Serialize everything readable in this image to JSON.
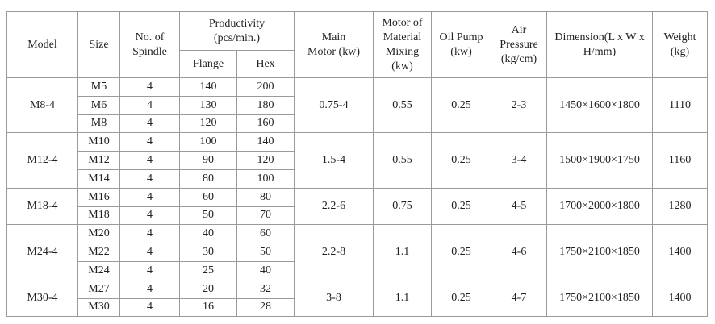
{
  "headers": [
    {
      "lines": [
        "Model"
      ]
    },
    {
      "lines": [
        "Size"
      ]
    },
    {
      "lines": [
        "No. of",
        "Spindle"
      ]
    },
    {
      "lines": [
        "Productivity",
        "(pcs/min.)"
      ],
      "sub": [
        "Flange",
        "Hex"
      ]
    },
    {
      "lines": [
        "Main",
        "Motor    (kw)"
      ]
    },
    {
      "lines": [
        "Motor of",
        "Material",
        "Mixing",
        "(kw)"
      ]
    },
    {
      "lines": [
        "Oil Pump",
        "(kw)"
      ]
    },
    {
      "lines": [
        "Air",
        "Pressure",
        "(kg/cm)"
      ]
    },
    {
      "lines": [
        "Dimension(L x W x",
        "H/mm)"
      ]
    },
    {
      "lines": [
        "Weight",
        "(kg)"
      ]
    }
  ],
  "groups": [
    {
      "model": "M8-4",
      "main_motor": "0.75-4",
      "mixing": 0.55,
      "oil_pump": 0.25,
      "air": "2-3",
      "dimension": "1450×1600×1800",
      "weight": 1110,
      "rows": [
        [
          "M5",
          4,
          140,
          200
        ],
        [
          "M6",
          4,
          130,
          180
        ],
        [
          "M8",
          4,
          120,
          160
        ]
      ]
    },
    {
      "model": "M12-4",
      "main_motor": "1.5-4",
      "mixing": 0.55,
      "oil_pump": 0.25,
      "air": "3-4",
      "dimension": "1500×1900×1750",
      "weight": 1160,
      "rows": [
        [
          "M10",
          4,
          100,
          140
        ],
        [
          "M12",
          4,
          90,
          120
        ],
        [
          "M14",
          4,
          80,
          100
        ]
      ]
    },
    {
      "model": "M18-4",
      "main_motor": "2.2-6",
      "mixing": 0.75,
      "oil_pump": 0.25,
      "air": "4-5",
      "dimension": "1700×2000×1800",
      "weight": 1280,
      "rows": [
        [
          "M16",
          4,
          60,
          80
        ],
        [
          "M18",
          4,
          50,
          70
        ]
      ]
    },
    {
      "model": "M24-4",
      "main_motor": "2.2-8",
      "mixing": 1.1,
      "oil_pump": 0.25,
      "air": "4-6",
      "dimension": "1750×2100×1850",
      "weight": 1400,
      "rows": [
        [
          "M20",
          4,
          40,
          60
        ],
        [
          "M22",
          4,
          30,
          50
        ],
        [
          "M24",
          4,
          25,
          40
        ]
      ]
    },
    {
      "model": "M30-4",
      "main_motor": "3-8",
      "mixing": 1.1,
      "oil_pump": 0.25,
      "air": "4-7",
      "dimension": "1750×2100×1850",
      "weight": 1400,
      "rows": [
        [
          "M27",
          4,
          20,
          32
        ],
        [
          "M30",
          4,
          16,
          28
        ]
      ]
    }
  ]
}
